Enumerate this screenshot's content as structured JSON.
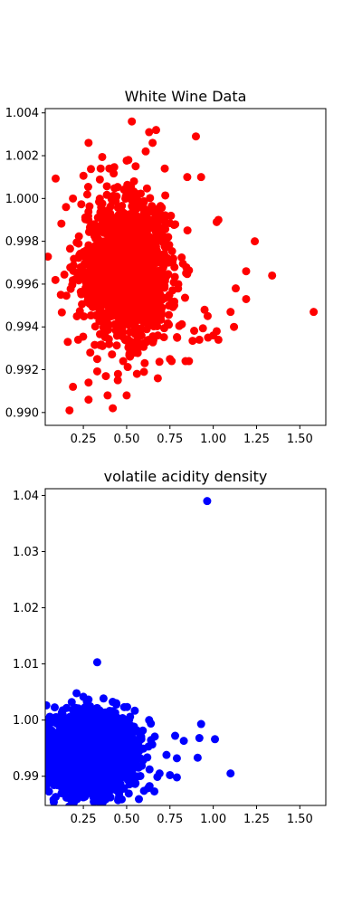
{
  "chart_data": [
    {
      "type": "scatter",
      "title": "White Wine Data",
      "xlabel": "",
      "ylabel": "",
      "color": "#ff0000",
      "xlim": [
        0.03,
        1.65
      ],
      "ylim": [
        0.9894,
        1.0042
      ],
      "xticks": [
        0.25,
        0.5,
        0.75,
        1.0,
        1.25,
        1.5
      ],
      "xtick_labels": [
        "0.25",
        "0.50",
        "0.75",
        "1.00",
        "1.25",
        "1.50"
      ],
      "yticks": [
        0.99,
        0.992,
        0.994,
        0.996,
        0.998,
        1.0,
        1.002,
        1.004
      ],
      "ytick_labels": [
        "0.990",
        "0.992",
        "0.994",
        "0.996",
        "0.998",
        "1.000",
        "1.002",
        "1.004"
      ],
      "grid": false,
      "cluster": {
        "x_mean": 0.5,
        "x_sd": 0.13,
        "y_mean": 0.9967,
        "y_sd": 0.0016,
        "count": 1500
      },
      "points": [
        {
          "x": 0.53,
          "y": 1.0036
        },
        {
          "x": 0.63,
          "y": 1.0031
        },
        {
          "x": 0.67,
          "y": 1.0032
        },
        {
          "x": 0.28,
          "y": 1.0026
        },
        {
          "x": 0.9,
          "y": 1.0029
        },
        {
          "x": 0.65,
          "y": 1.0026
        },
        {
          "x": 0.61,
          "y": 1.0022
        },
        {
          "x": 0.51,
          "y": 1.0018
        },
        {
          "x": 0.4,
          "y": 1.0014
        },
        {
          "x": 0.35,
          "y": 1.0014
        },
        {
          "x": 0.72,
          "y": 1.0014
        },
        {
          "x": 0.85,
          "y": 1.001
        },
        {
          "x": 0.93,
          "y": 1.001
        },
        {
          "x": 0.19,
          "y": 1.0
        },
        {
          "x": 0.15,
          "y": 0.9996
        },
        {
          "x": 1.02,
          "y": 0.9989
        },
        {
          "x": 1.03,
          "y": 0.999
        },
        {
          "x": 0.12,
          "y": 0.9955
        },
        {
          "x": 1.24,
          "y": 0.998
        },
        {
          "x": 1.19,
          "y": 0.9966
        },
        {
          "x": 1.34,
          "y": 0.9964
        },
        {
          "x": 1.58,
          "y": 0.9947
        },
        {
          "x": 1.19,
          "y": 0.9953
        },
        {
          "x": 1.13,
          "y": 0.9958
        },
        {
          "x": 1.1,
          "y": 0.9947
        },
        {
          "x": 1.12,
          "y": 0.994
        },
        {
          "x": 0.95,
          "y": 0.9948
        },
        {
          "x": 1.02,
          "y": 0.9938
        },
        {
          "x": 1.03,
          "y": 0.9934
        },
        {
          "x": 1.0,
          "y": 0.9936
        },
        {
          "x": 0.92,
          "y": 0.9934
        },
        {
          "x": 0.97,
          "y": 0.9935
        },
        {
          "x": 0.84,
          "y": 0.9924
        },
        {
          "x": 0.86,
          "y": 0.9924
        },
        {
          "x": 0.75,
          "y": 0.9925
        },
        {
          "x": 0.76,
          "y": 0.9924
        },
        {
          "x": 0.6,
          "y": 0.9919
        },
        {
          "x": 0.68,
          "y": 0.9916
        },
        {
          "x": 0.38,
          "y": 0.9917
        },
        {
          "x": 0.45,
          "y": 0.9918
        },
        {
          "x": 0.28,
          "y": 0.9914
        },
        {
          "x": 0.19,
          "y": 0.9912
        },
        {
          "x": 0.39,
          "y": 0.9908
        },
        {
          "x": 0.5,
          "y": 0.9908
        },
        {
          "x": 0.28,
          "y": 0.9906
        },
        {
          "x": 0.42,
          "y": 0.9902
        },
        {
          "x": 0.17,
          "y": 0.9901
        },
        {
          "x": 0.16,
          "y": 0.9933
        },
        {
          "x": 0.22,
          "y": 0.9934
        },
        {
          "x": 0.29,
          "y": 0.9928
        },
        {
          "x": 0.33,
          "y": 0.9925
        },
        {
          "x": 0.48,
          "y": 0.9924
        }
      ]
    },
    {
      "type": "scatter",
      "title": "volatile acidity density",
      "xlabel": "",
      "ylabel": "",
      "color": "#0000ff",
      "xlim": [
        0.03,
        1.65
      ],
      "ylim": [
        0.9848,
        1.0412
      ],
      "xticks": [
        0.25,
        0.5,
        0.75,
        1.0,
        1.25,
        1.5
      ],
      "xtick_labels": [
        "0.25",
        "0.50",
        "0.75",
        "1.00",
        "1.25",
        "1.50"
      ],
      "yticks": [
        0.99,
        1.0,
        1.01,
        1.02,
        1.03,
        1.04
      ],
      "ytick_labels": [
        "0.99",
        "1.00",
        "1.01",
        "1.02",
        "1.03",
        "1.04"
      ],
      "grid": false,
      "cluster": {
        "x_mean": 0.28,
        "x_sd": 0.11,
        "y_mean": 0.994,
        "y_sd": 0.003,
        "count": 4500
      },
      "points": [
        {
          "x": 0.965,
          "y": 1.039
        },
        {
          "x": 0.33,
          "y": 1.0103
        },
        {
          "x": 0.44,
          "y": 1.003
        },
        {
          "x": 0.63,
          "y": 1.0
        },
        {
          "x": 0.93,
          "y": 0.9993
        },
        {
          "x": 1.1,
          "y": 0.9905
        },
        {
          "x": 1.01,
          "y": 0.9966
        },
        {
          "x": 0.92,
          "y": 0.9968
        },
        {
          "x": 0.78,
          "y": 0.9972
        },
        {
          "x": 0.83,
          "y": 0.9963
        },
        {
          "x": 0.91,
          "y": 0.9933
        },
        {
          "x": 0.79,
          "y": 0.9932
        },
        {
          "x": 0.73,
          "y": 0.9938
        },
        {
          "x": 0.69,
          "y": 0.9905
        },
        {
          "x": 0.75,
          "y": 0.9902
        },
        {
          "x": 0.79,
          "y": 0.9898
        },
        {
          "x": 0.66,
          "y": 0.9873
        },
        {
          "x": 0.6,
          "y": 0.9874
        },
        {
          "x": 0.28,
          "y": 0.987
        },
        {
          "x": 0.08,
          "y": 0.9945
        },
        {
          "x": 0.1,
          "y": 0.9978
        },
        {
          "x": 0.26,
          "y": 1.0023
        },
        {
          "x": 0.35,
          "y": 1.0015
        },
        {
          "x": 0.52,
          "y": 1.0006
        }
      ]
    }
  ]
}
